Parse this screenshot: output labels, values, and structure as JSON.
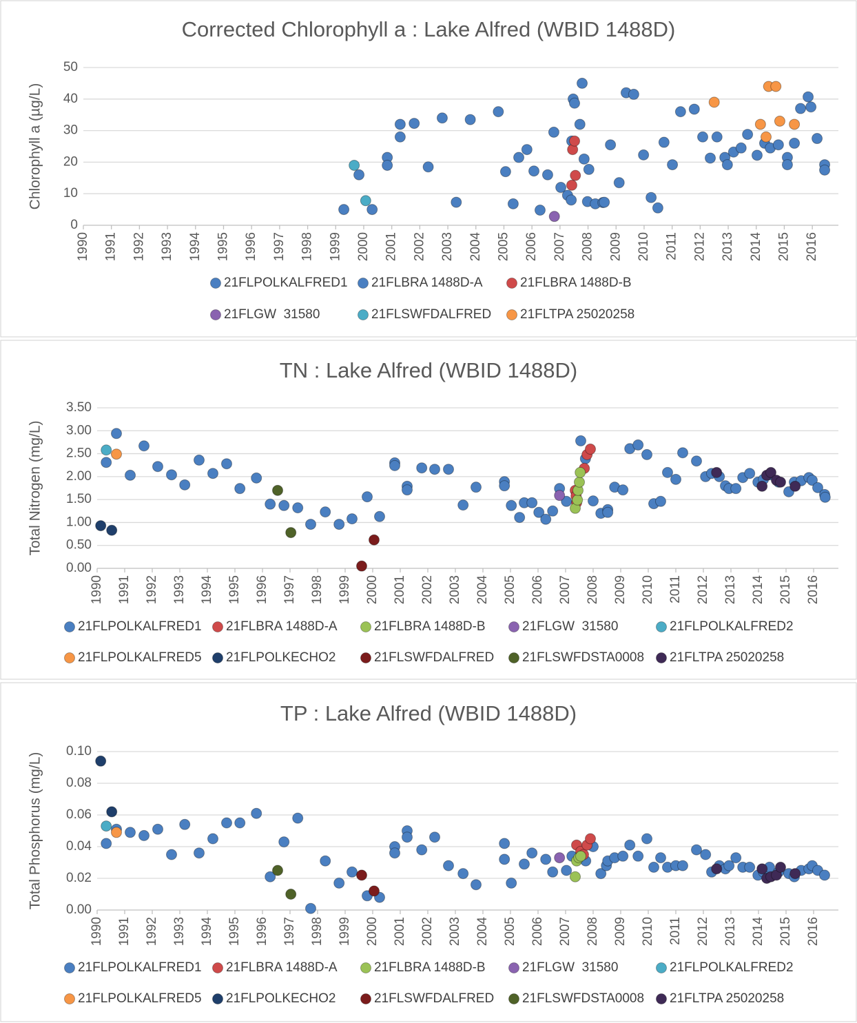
{
  "chart_data": [
    {
      "type": "scatter",
      "title": "Corrected Chlorophyll a : Lake Alfred (WBID 1488D)",
      "y_label": "Chlorophyll a (µg/L)",
      "xlim": [
        1990,
        2016.93
      ],
      "xticks": [
        1990,
        1991,
        1992,
        1993,
        1994,
        1995,
        1996,
        1997,
        1998,
        1999,
        2000,
        2001,
        2002,
        2003,
        2004,
        2005,
        2006,
        2007,
        2008,
        2009,
        2010,
        2011,
        2012,
        2013,
        2014,
        2015,
        2016
      ],
      "ylim": [
        0,
        50
      ],
      "yticks": [
        0,
        10,
        20,
        30,
        40,
        50
      ],
      "grid": true,
      "series": [
        {
          "name": "21FLPOLKALFRED1",
          "color": "#4a7fc1",
          "x": [
            1999.29,
            1999.83,
            2000.3,
            2000.84,
            2000.84,
            2001.3,
            2001.3,
            2001.8,
            2002.3,
            2002.8,
            2003.3,
            2003.8,
            2004.8,
            2005.06,
            2005.33,
            2005.53,
            2005.82,
            2006.07,
            2006.29,
            2006.56,
            2006.78,
            2007.86,
            2007.98,
            2008.03,
            2008.26,
            2008.53,
            2008.58,
            2008.8,
            2009.11,
            2009.36,
            2009.63,
            2009.98,
            2010.25,
            2010.49,
            2010.71,
            2011.01,
            2011.3,
            2011.79,
            2012.09,
            2012.36,
            2012.6,
            2012.88,
            2012.97,
            2013.19,
            2013.46,
            2013.69,
            2014.03,
            2014.3,
            2014.5,
            2014.79,
            2015.11,
            2015.11,
            2015.36,
            2015.58,
            2015.85,
            2015.95,
            2016.17,
            2016.44,
            2016.44
          ],
          "values": [
            5,
            16,
            5,
            21.5,
            19,
            32,
            28,
            32.3,
            18.5,
            34,
            7.3,
            33.5,
            36,
            17,
            6.8,
            21.5,
            24,
            17.2,
            4.8,
            16,
            29.5,
            21,
            7.5,
            17.7,
            6.8,
            7.2,
            7.3,
            25.5,
            13.5,
            42,
            41.5,
            22.3,
            8.8,
            5.5,
            26.3,
            19.2,
            36,
            36.8,
            28,
            21.3,
            28,
            21.5,
            19.2,
            23.2,
            24.5,
            28.8,
            22.2,
            26,
            24.5,
            25.5,
            21.5,
            19.2,
            26,
            37,
            40.7,
            37.5,
            27.5,
            19.2,
            17.5
          ]
        },
        {
          "name": "21FLBRA 1488D-A",
          "color": "#4a7fc1",
          "x": [
            2007.03,
            2007.27,
            2007.4,
            2007.47,
            2007.52,
            2007.42,
            2007.71,
            2007.79
          ],
          "values": [
            12,
            9.5,
            8,
            40,
            38.7,
            26.7,
            32,
            45
          ]
        },
        {
          "name": "21FLBRA 1488D-B",
          "color": "#cf4a4a",
          "x": [
            2007.42,
            2007.45,
            2007.52,
            2007.55
          ],
          "values": [
            12.7,
            24,
            26.7,
            15.8
          ]
        },
        {
          "name": "21FLGW  31580",
          "color": "#8a63b0",
          "x": [
            2006.8
          ],
          "values": [
            2.8
          ]
        },
        {
          "name": "21FLSWFDALFRED",
          "color": "#4bacc6",
          "x": [
            1999.66,
            2000.07
          ],
          "values": [
            19,
            7.8
          ]
        },
        {
          "name": "21FLTPA 25020258",
          "color": "#f79646",
          "x": [
            2012.5,
            2014.15,
            2014.35,
            2014.44,
            2014.7,
            2014.84,
            2015.36
          ],
          "values": [
            39,
            32,
            28,
            44,
            44,
            33,
            32
          ]
        }
      ]
    },
    {
      "type": "scatter",
      "title": "TN : Lake Alfred (WBID 1488D)",
      "y_label": "Total Nitrogen (mg/L)",
      "xlim": [
        1990,
        2016.9
      ],
      "xticks": [
        1990,
        1991,
        1992,
        1993,
        1994,
        1995,
        1996,
        1997,
        1998,
        1999,
        2000,
        2001,
        2002,
        2003,
        2004,
        2005,
        2006,
        2007,
        2008,
        2009,
        2010,
        2011,
        2012,
        2013,
        2014,
        2015,
        2016
      ],
      "ylim": [
        0,
        3.5
      ],
      "yticks": [
        {
          "value": 0,
          "label": "0.00"
        },
        {
          "value": 0.5,
          "label": "0.50"
        },
        {
          "value": 1,
          "label": "1.00"
        },
        {
          "value": 1.5,
          "label": "1.50"
        },
        {
          "value": 2,
          "label": "2.00"
        },
        {
          "value": 2.5,
          "label": "2.50"
        },
        {
          "value": 3,
          "label": "3.00"
        },
        {
          "value": 3.5,
          "label": "3.50"
        }
      ],
      "grid": true,
      "series": [
        {
          "name": "21FLPOLKALFRED1",
          "color": "#4a7fc1",
          "x": [
            1990.33,
            1990.7,
            1991.2,
            1991.7,
            1992.2,
            1992.7,
            1993.18,
            1993.7,
            1994.2,
            1994.7,
            1995.18,
            1995.78,
            1996.28,
            1996.78,
            1997.28,
            1997.75,
            1998.28,
            1998.78,
            1999.25,
            1999.8,
            2000.25,
            2000.8,
            2000.8,
            2001.25,
            2001.25,
            2001.78,
            2002.25,
            2002.75,
            2003.28,
            2003.75,
            2004.78,
            2004.78,
            2005.03,
            2005.33,
            2005.5,
            2005.78,
            2006.03,
            2006.28,
            2006.53,
            2006.78,
            2007.03,
            2007.55,
            2007.72,
            2008.0,
            2008.28,
            2008.53,
            2008.53,
            2008.78,
            2009.08,
            2009.33,
            2009.63,
            2009.95,
            2010.2,
            2010.45,
            2010.7,
            2011.0,
            2011.25,
            2011.75,
            2012.08,
            2012.3,
            2012.58,
            2012.8,
            2012.93,
            2013.18,
            2013.43,
            2013.68,
            2013.98,
            2014.18,
            2014.4,
            2014.73,
            2015.1,
            2015.3,
            2015.55,
            2015.83,
            2015.95,
            2016.15,
            2016.4,
            2016.42
          ],
          "values": [
            2.31,
            2.94,
            2.03,
            2.67,
            2.22,
            2.04,
            1.82,
            2.36,
            2.07,
            2.28,
            1.74,
            1.97,
            1.4,
            1.37,
            1.32,
            0.96,
            1.23,
            0.96,
            1.08,
            1.56,
            1.13,
            2.3,
            2.24,
            1.79,
            1.71,
            2.19,
            2.16,
            2.16,
            1.38,
            1.77,
            1.89,
            1.8,
            1.37,
            1.11,
            1.43,
            1.43,
            1.22,
            1.07,
            1.25,
            1.74,
            1.46,
            2.78,
            2.39,
            1.47,
            1.2,
            1.28,
            1.22,
            1.77,
            1.71,
            2.61,
            2.69,
            2.48,
            1.41,
            1.46,
            2.09,
            1.94,
            2.52,
            2.34,
            2.0,
            2.07,
            2.0,
            1.8,
            1.74,
            1.74,
            1.98,
            2.07,
            1.88,
            1.94,
            2.04,
            1.88,
            1.67,
            1.88,
            1.91,
            1.98,
            1.92,
            1.76,
            1.61,
            1.55
          ]
        },
        {
          "name": "21FLBRA 1488D-A",
          "color": "#cf4a4a",
          "x": [
            2007.35,
            2007.38,
            2007.4,
            2007.68,
            2007.78,
            2007.9
          ],
          "values": [
            1.7,
            1.58,
            1.43,
            2.18,
            2.48,
            2.6
          ]
        },
        {
          "name": "21FLBRA 1488D-B",
          "color": "#9bc256",
          "x": [
            2007.35,
            2007.43,
            2007.45,
            2007.5,
            2007.53
          ],
          "values": [
            1.31,
            1.49,
            1.7,
            1.88,
            2.09
          ]
        },
        {
          "name": "21FLGW  31580",
          "color": "#8a63b0",
          "x": [
            2006.78
          ],
          "values": [
            1.59
          ]
        },
        {
          "name": "21FLPOLKALFRED2",
          "color": "#4bacc6",
          "x": [
            1990.33
          ],
          "values": [
            2.58
          ]
        },
        {
          "name": "21FLPOLKALFRED5",
          "color": "#f79646",
          "x": [
            1990.7
          ],
          "values": [
            2.49
          ]
        },
        {
          "name": "21FLPOLKECHO2",
          "color": "#1f3f6b",
          "x": [
            1990.13,
            1990.53
          ],
          "values": [
            0.93,
            0.83
          ]
        },
        {
          "name": "21FLSWFDALFRED",
          "color": "#7b1c1c",
          "x": [
            1999.6,
            2000.05
          ],
          "values": [
            0.05,
            0.62
          ]
        },
        {
          "name": "21FLSWFDSTA0008",
          "color": "#4f6228",
          "x": [
            1996.55,
            1997.03
          ],
          "values": [
            1.7,
            0.78
          ]
        },
        {
          "name": "21FLTPA 25020258",
          "color": "#3f2a56",
          "x": [
            2012.48,
            2014.13,
            2014.3,
            2014.45,
            2014.65,
            2014.8,
            2015.33
          ],
          "values": [
            2.09,
            1.79,
            2.03,
            2.09,
            1.92,
            1.88,
            1.79
          ]
        }
      ]
    },
    {
      "type": "scatter",
      "title": "TP : Lake Alfred (WBID 1488D)",
      "y_label": "Total Phosphorus (mg/L)",
      "xlim": [
        1990,
        2016.9
      ],
      "xticks": [
        1990,
        1991,
        1992,
        1993,
        1994,
        1995,
        1996,
        1997,
        1998,
        1999,
        2000,
        2001,
        2002,
        2003,
        2004,
        2005,
        2006,
        2007,
        2008,
        2009,
        2010,
        2011,
        2012,
        2013,
        2014,
        2015,
        2016
      ],
      "ylim": [
        0,
        0.1
      ],
      "yticks": [
        {
          "value": 0,
          "label": "0.00"
        },
        {
          "value": 0.02,
          "label": "0.02"
        },
        {
          "value": 0.04,
          "label": "0.04"
        },
        {
          "value": 0.06,
          "label": "0.06"
        },
        {
          "value": 0.08,
          "label": "0.08"
        },
        {
          "value": 0.1,
          "label": "0.10"
        }
      ],
      "grid": true,
      "series": [
        {
          "name": "21FLPOLKALFRED1",
          "color": "#4a7fc1",
          "x": [
            1990.33,
            1990.7,
            1991.2,
            1991.7,
            1992.2,
            1992.7,
            1993.18,
            1993.7,
            1994.2,
            1994.7,
            1995.18,
            1995.78,
            1996.28,
            1996.78,
            1997.28,
            1997.75,
            1998.28,
            1998.78,
            1999.25,
            1999.8,
            2000.25,
            2000.8,
            2000.8,
            2001.25,
            2001.25,
            2001.78,
            2002.25,
            2002.75,
            2003.28,
            2003.75,
            2004.78,
            2004.78,
            2005.03,
            2005.5,
            2005.78,
            2006.28,
            2006.53,
            2007.03,
            2007.23,
            2007.73,
            2008.0,
            2008.28,
            2008.48,
            2008.53,
            2008.78,
            2009.08,
            2009.33,
            2009.63,
            2009.95,
            2010.2,
            2010.45,
            2010.7,
            2011.0,
            2011.25,
            2011.75,
            2012.08,
            2012.3,
            2012.58,
            2012.8,
            2012.93,
            2013.18,
            2013.43,
            2013.68,
            2013.98,
            2014.18,
            2014.4,
            2014.73,
            2015.1,
            2015.3,
            2015.55,
            2015.83,
            2015.95,
            2016.15,
            2016.4
          ],
          "values": [
            0.042,
            0.051,
            0.049,
            0.047,
            0.051,
            0.035,
            0.054,
            0.036,
            0.045,
            0.055,
            0.055,
            0.061,
            0.021,
            0.043,
            0.058,
            0.001,
            0.031,
            0.017,
            0.024,
            0.009,
            0.008,
            0.04,
            0.036,
            0.05,
            0.046,
            0.038,
            0.046,
            0.028,
            0.023,
            0.016,
            0.042,
            0.032,
            0.017,
            0.029,
            0.036,
            0.032,
            0.024,
            0.025,
            0.034,
            0.031,
            0.04,
            0.023,
            0.028,
            0.031,
            0.033,
            0.034,
            0.041,
            0.034,
            0.045,
            0.027,
            0.033,
            0.027,
            0.028,
            0.028,
            0.038,
            0.035,
            0.024,
            0.028,
            0.026,
            0.028,
            0.033,
            0.027,
            0.027,
            0.022,
            0.024,
            0.027,
            0.024,
            0.023,
            0.021,
            0.025,
            0.026,
            0.028,
            0.025,
            0.022
          ]
        },
        {
          "name": "21FLBRA 1488D-A",
          "color": "#cf4a4a",
          "x": [
            2007.4,
            2007.55,
            2007.65,
            2007.78,
            2007.9
          ],
          "values": [
            0.041,
            0.037,
            0.035,
            0.041,
            0.045
          ]
        },
        {
          "name": "21FLBRA 1488D-B",
          "color": "#9bc256",
          "x": [
            2007.35,
            2007.4,
            2007.48,
            2007.55
          ],
          "values": [
            0.021,
            0.031,
            0.033,
            0.034
          ]
        },
        {
          "name": "21FLGW  31580",
          "color": "#8a63b0",
          "x": [
            2006.78
          ],
          "values": [
            0.033
          ]
        },
        {
          "name": "21FLPOLKALFRED2",
          "color": "#4bacc6",
          "x": [
            1990.33
          ],
          "values": [
            0.053
          ]
        },
        {
          "name": "21FLPOLKALFRED5",
          "color": "#f79646",
          "x": [
            1990.7
          ],
          "values": [
            0.049
          ]
        },
        {
          "name": "21FLPOLKECHO2",
          "color": "#1f3f6b",
          "x": [
            1990.13,
            1990.53
          ],
          "values": [
            0.094,
            0.062
          ]
        },
        {
          "name": "21FLSWFDALFRED",
          "color": "#7b1c1c",
          "x": [
            1999.6,
            2000.05
          ],
          "values": [
            0.022,
            0.012
          ]
        },
        {
          "name": "21FLSWFDSTA0008",
          "color": "#4f6228",
          "x": [
            1996.55,
            1997.03
          ],
          "values": [
            0.025,
            0.01
          ]
        },
        {
          "name": "21FLTPA 25020258",
          "color": "#3f2a56",
          "x": [
            2012.48,
            2014.13,
            2014.3,
            2014.45,
            2014.65,
            2014.8,
            2015.33
          ],
          "values": [
            0.026,
            0.026,
            0.02,
            0.021,
            0.022,
            0.027,
            0.023
          ]
        }
      ]
    }
  ]
}
